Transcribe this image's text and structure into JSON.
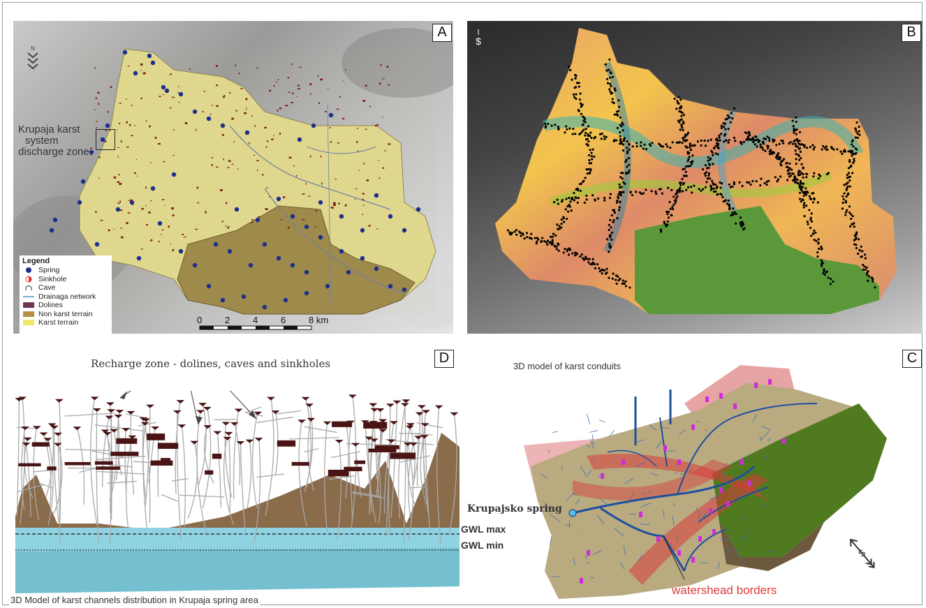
{
  "panels": {
    "a": {
      "letter": "A"
    },
    "b": {
      "letter": "B"
    },
    "c": {
      "letter": "C",
      "title": "3D model of karst conduits",
      "spring_label": "Krupajsko spring",
      "watershed_label": "watershead borders"
    },
    "d": {
      "letter": "D",
      "recharge_label": "Recharge zone - dolines, caves and sinkholes",
      "gwl_max": "GWL max",
      "gwl_min": "GWL min",
      "caption": "3D Model of karst channels distribution in Krupaja spring area"
    }
  },
  "discharge_label": {
    "line1": "Krupaja karst",
    "line2": "system",
    "line3": "discharge zone"
  },
  "legend": {
    "title": "Legend",
    "items": [
      {
        "label": "Spring",
        "icon": "blue-dot"
      },
      {
        "label": "Sinkhole",
        "icon": "red-half-circle"
      },
      {
        "label": "Cave",
        "icon": "cave-arch"
      },
      {
        "label": "Drainaga network",
        "icon": "blue-line"
      },
      {
        "label": "Dolines",
        "icon": "maroon-box"
      },
      {
        "label": "Non karst terrain",
        "icon": "tan-box"
      },
      {
        "label": "Karst terrain",
        "icon": "yellow-box"
      }
    ]
  },
  "scale": {
    "ticks": [
      "0",
      "2",
      "4",
      "6",
      "8 km"
    ]
  },
  "colors": {
    "karst": "#e1d98e",
    "nonkarst": "#9e8a4a",
    "spring": "#1c2f8e",
    "doline": "#7a1a1a",
    "watershed": "#e03a3a",
    "conduit": "#1d4f9c",
    "green_zone": "#5c9a3c"
  }
}
